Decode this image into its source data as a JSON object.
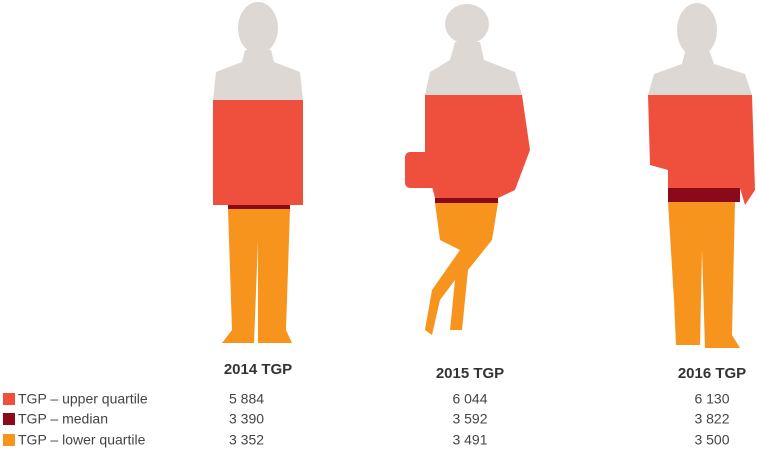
{
  "columns": [
    "2014 TGP",
    "2015 TGP",
    "2016 TGP"
  ],
  "rows": [
    {
      "label": "TGP – upper quartile",
      "values": [
        "5 884",
        "6 044",
        "6 130"
      ]
    },
    {
      "label": "TGP – median",
      "values": [
        "3 390",
        "3 592",
        "3 822"
      ]
    },
    {
      "label": "TGP – lower quartile",
      "values": [
        "3 352",
        "3 491",
        "3 500"
      ]
    }
  ]
}
